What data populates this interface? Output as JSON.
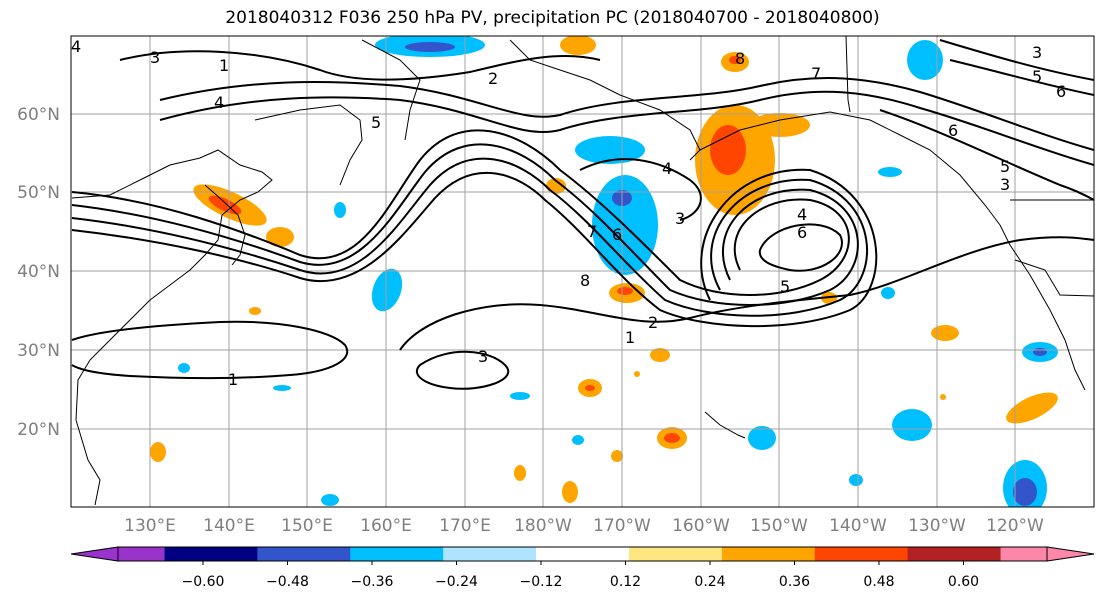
{
  "title": "2018040312 F036 250 hPa PV, precipitation PC (2018040700 - 2018040800)",
  "lat_labels": [
    "60°N",
    "50°N",
    "40°N",
    "30°N",
    "20°N"
  ],
  "lon_labels": [
    "130°E",
    "140°E",
    "150°E",
    "160°E",
    "170°E",
    "180°W",
    "170°W",
    "160°W",
    "150°W",
    "140°W",
    "130°W",
    "120°W"
  ],
  "colorbar": {
    "ticks": [
      "−0.60",
      "−0.48",
      "−0.36",
      "−0.24",
      "−0.12",
      "0.12",
      "0.24",
      "0.36",
      "0.48",
      "0.60"
    ],
    "colors": [
      "#9933cc",
      "#000080",
      "#3355cc",
      "#00bfff",
      "#aee4ff",
      "#ffffff",
      "#ffe680",
      "#ffa500",
      "#ff4500",
      "#b22222",
      "#ff88aa"
    ]
  },
  "contour_labels": [
    "1",
    "2",
    "3",
    "4",
    "5",
    "6",
    "7",
    "8"
  ],
  "colors": {
    "grid": "#a0a0a0",
    "contour": "#000000",
    "coast": "#000000"
  }
}
